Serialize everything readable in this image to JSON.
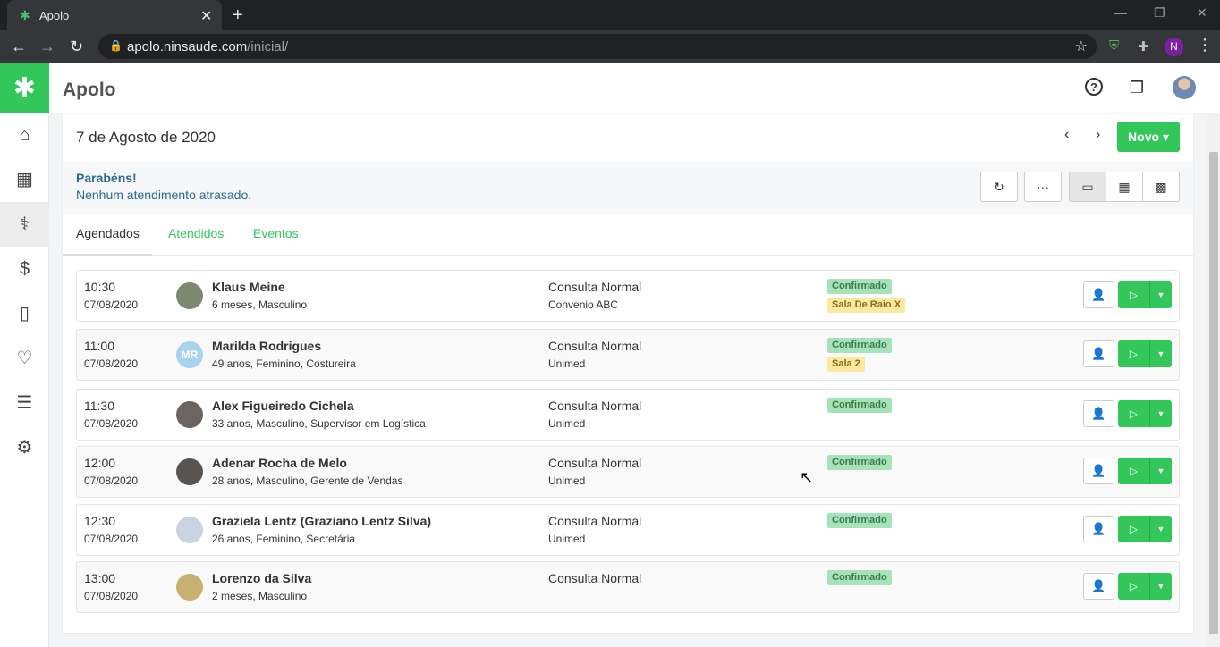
{
  "browser": {
    "tab_title": "Apolo",
    "url_host": "apolo.ninsaude.com",
    "url_path": "/inicial/",
    "profile_initial": "N"
  },
  "app": {
    "title": "Apolo",
    "brand_color": "#33c75a"
  },
  "sidebar": {
    "items": [
      {
        "icon": "home-icon"
      },
      {
        "icon": "calendar-icon"
      },
      {
        "icon": "stethoscope-icon"
      },
      {
        "icon": "dollar-icon"
      },
      {
        "icon": "bag-icon"
      },
      {
        "icon": "heart-pulse-icon"
      },
      {
        "icon": "list-icon"
      },
      {
        "icon": "gear-icon"
      }
    ]
  },
  "main": {
    "date_title": "7 de Agosto de 2020",
    "new_button": "Novo",
    "alert_title": "Parabéns!",
    "alert_message": "Nenhum atendimento atrasado.",
    "tabs": [
      {
        "label": "Agendados"
      },
      {
        "label": "Atendidos"
      },
      {
        "label": "Eventos"
      }
    ],
    "appointments": [
      {
        "time": "10:30",
        "date": "07/08/2020",
        "name": "Klaus Meine",
        "info": "6 meses, Masculino",
        "type": "Consulta Normal",
        "insurance": "Convenio ABC",
        "status": "Confirmado",
        "room": "Sala De Raio X",
        "initials": ""
      },
      {
        "time": "11:00",
        "date": "07/08/2020",
        "name": "Marilda Rodrigues",
        "info": "49 anos, Feminino, Costureira",
        "type": "Consulta Normal",
        "insurance": "Unimed",
        "status": "Confirmado",
        "room": "Sala 2",
        "initials": "MR"
      },
      {
        "time": "11:30",
        "date": "07/08/2020",
        "name": "Alex Figueiredo Cichela",
        "info": "33 anos, Masculino, Supervisor em Logística",
        "type": "Consulta Normal",
        "insurance": "Unimed",
        "status": "Confirmado",
        "room": "",
        "initials": ""
      },
      {
        "time": "12:00",
        "date": "07/08/2020",
        "name": "Adenar Rocha de Melo",
        "info": "28 anos, Masculino, Gerente de Vendas",
        "type": "Consulta Normal",
        "insurance": "Unimed",
        "status": "Confirmado",
        "room": "",
        "initials": ""
      },
      {
        "time": "12:30",
        "date": "07/08/2020",
        "name": "Graziela Lentz (Graziano Lentz Silva)",
        "info": "26 anos, Feminino, Secretária",
        "type": "Consulta Normal",
        "insurance": "Unimed",
        "status": "Confirmado",
        "room": "",
        "initials": ""
      },
      {
        "time": "13:00",
        "date": "07/08/2020",
        "name": "Lorenzo da Silva",
        "info": "2 meses, Masculino",
        "type": "Consulta Normal",
        "insurance": "",
        "status": "Confirmado",
        "room": "",
        "initials": ""
      }
    ]
  }
}
